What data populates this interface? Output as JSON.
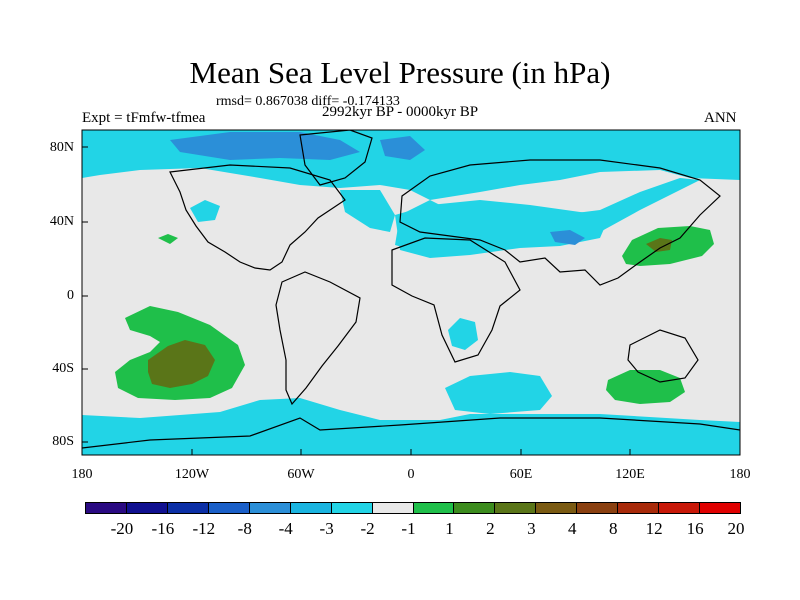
{
  "title": "Mean Sea Level Pressure (in hPa)",
  "stats": "rmsd= 0.867038 diff= -0.174133",
  "expt": "Expt = tFmfw-tfmea",
  "period": "2992kyr BP - 0000kyr BP",
  "season": "ANN",
  "lat_labels": [
    "80N",
    "40N",
    "0",
    "40S",
    "80S"
  ],
  "lon_labels": [
    "180",
    "120W",
    "60W",
    "0",
    "60E",
    "120E",
    "180"
  ],
  "colorbar": {
    "colors": [
      "#2a0a82",
      "#101090",
      "#0b2fa6",
      "#1a5fc8",
      "#2b8fd8",
      "#1ab4e0",
      "#22d4e6",
      "#e8e8e8",
      "#1fbf4a",
      "#3c8c1e",
      "#5a7518",
      "#7a5a12",
      "#8a4010",
      "#a82a0a",
      "#c81808",
      "#e00000"
    ],
    "labels": [
      "-20",
      "-16",
      "-12",
      "-8",
      "-4",
      "-3",
      "-2",
      "-1",
      "1",
      "2",
      "3",
      "4",
      "8",
      "12",
      "16",
      "20"
    ]
  },
  "field_colors": {
    "neutral": "#e8e8e8",
    "neg1": "#22d4e6",
    "neg2": "#2b8fd8",
    "pos1": "#1fbf4a",
    "pos2": "#5a7518"
  }
}
